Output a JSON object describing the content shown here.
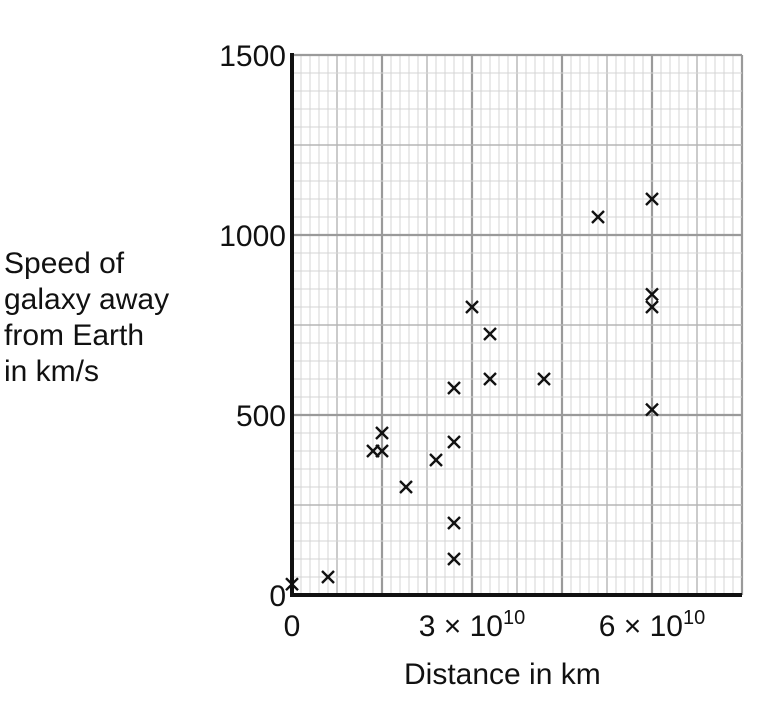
{
  "chart_data": {
    "type": "scatter",
    "title": "",
    "ylabel_lines": [
      "Speed of",
      "galaxy away",
      "from Earth",
      "in km/s"
    ],
    "xlabel": "Distance in km",
    "y_ticks": [
      "0",
      "500",
      "1000",
      "1500"
    ],
    "x_ticks": [
      {
        "value": 0,
        "base": "0",
        "exp": ""
      },
      {
        "value": 30000000000,
        "base": "3 × 10",
        "exp": "10"
      },
      {
        "value": 60000000000,
        "base": "6 × 10",
        "exp": "10"
      }
    ],
    "xlim": [
      0,
      75000000000
    ],
    "ylim": [
      0,
      1500
    ],
    "grid": true,
    "marker": "x",
    "points": [
      {
        "x": 0,
        "y": 30
      },
      {
        "x": 6000000000,
        "y": 50
      },
      {
        "x": 13500000000,
        "y": 400
      },
      {
        "x": 15000000000,
        "y": 400
      },
      {
        "x": 15000000000,
        "y": 450
      },
      {
        "x": 19000000000,
        "y": 300
      },
      {
        "x": 24000000000,
        "y": 375
      },
      {
        "x": 27000000000,
        "y": 100
      },
      {
        "x": 27000000000,
        "y": 200
      },
      {
        "x": 27000000000,
        "y": 425
      },
      {
        "x": 27000000000,
        "y": 575
      },
      {
        "x": 30000000000,
        "y": 800
      },
      {
        "x": 33000000000,
        "y": 600
      },
      {
        "x": 33000000000,
        "y": 725
      },
      {
        "x": 42000000000,
        "y": 600
      },
      {
        "x": 51000000000,
        "y": 1050
      },
      {
        "x": 60000000000,
        "y": 515
      },
      {
        "x": 60000000000,
        "y": 800
      },
      {
        "x": 60000000000,
        "y": 835
      },
      {
        "x": 60000000000,
        "y": 1100
      }
    ]
  }
}
